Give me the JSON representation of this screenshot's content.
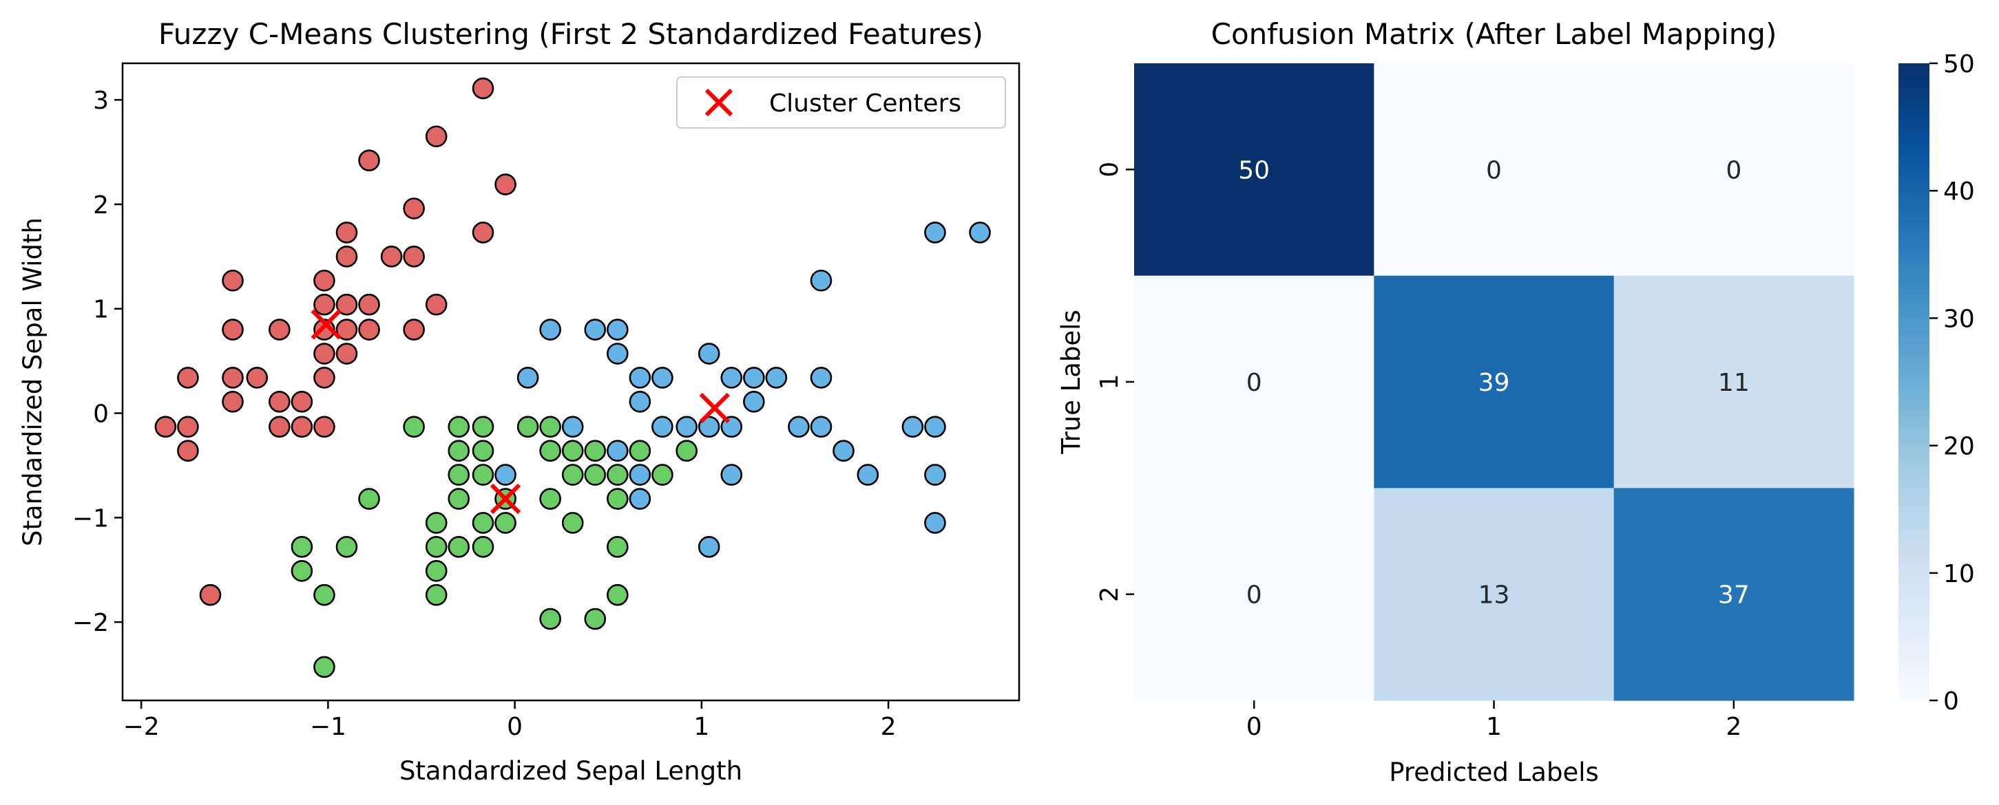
{
  "chart_data": [
    {
      "type": "scatter",
      "title": "Fuzzy C-Means Clustering (First 2 Standardized Features)",
      "xlabel": "Standardized Sepal Length",
      "ylabel": "Standardized Sepal Width",
      "xlim": [
        -2.1,
        2.7
      ],
      "ylim": [
        -2.75,
        3.35
      ],
      "xticks": [
        -2,
        -1,
        0,
        1,
        2
      ],
      "yticks": [
        -2,
        -1,
        0,
        1,
        2,
        3
      ],
      "legend": {
        "placement": "top-right",
        "entries": [
          "Cluster Centers"
        ]
      },
      "grid": false,
      "colors": {
        "red": "#e06666",
        "green": "#6acc64",
        "blue": "#66b3e6",
        "center": "#ff0000",
        "edge": "#000000"
      },
      "series": [
        {
          "color": "red",
          "points": [
            [
              -1.87,
              -0.13
            ],
            [
              -1.75,
              -0.13
            ],
            [
              -1.75,
              -0.36
            ],
            [
              -1.75,
              0.34
            ],
            [
              -1.63,
              -1.74
            ],
            [
              -1.51,
              0.11
            ],
            [
              -1.51,
              0.34
            ],
            [
              -1.51,
              0.8
            ],
            [
              -1.51,
              1.27
            ],
            [
              -1.38,
              0.34
            ],
            [
              -1.26,
              -0.13
            ],
            [
              -1.26,
              0.11
            ],
            [
              -1.26,
              0.8
            ],
            [
              -1.14,
              -0.13
            ],
            [
              -1.14,
              0.11
            ],
            [
              -1.02,
              -0.13
            ],
            [
              -1.02,
              0.34
            ],
            [
              -1.02,
              0.57
            ],
            [
              -1.02,
              0.8
            ],
            [
              -1.02,
              1.04
            ],
            [
              -1.02,
              1.27
            ],
            [
              -0.9,
              0.57
            ],
            [
              -0.9,
              0.8
            ],
            [
              -0.9,
              1.04
            ],
            [
              -0.9,
              1.5
            ],
            [
              -0.9,
              1.73
            ],
            [
              -0.78,
              0.8
            ],
            [
              -0.78,
              1.04
            ],
            [
              -0.78,
              2.42
            ],
            [
              -0.66,
              1.5
            ],
            [
              -0.54,
              0.8
            ],
            [
              -0.54,
              1.5
            ],
            [
              -0.54,
              1.96
            ],
            [
              -0.42,
              1.04
            ],
            [
              -0.42,
              2.65
            ],
            [
              -0.17,
              1.73
            ],
            [
              -0.17,
              3.11
            ],
            [
              -0.05,
              2.19
            ]
          ]
        },
        {
          "color": "green",
          "points": [
            [
              -1.14,
              -1.28
            ],
            [
              -1.14,
              -1.51
            ],
            [
              -1.02,
              -1.74
            ],
            [
              -1.02,
              -2.43
            ],
            [
              -0.9,
              -1.28
            ],
            [
              -0.78,
              -0.82
            ],
            [
              -0.54,
              -0.13
            ],
            [
              -0.42,
              -1.05
            ],
            [
              -0.42,
              -1.28
            ],
            [
              -0.42,
              -1.51
            ],
            [
              -0.42,
              -1.74
            ],
            [
              -0.3,
              -0.13
            ],
            [
              -0.3,
              -0.36
            ],
            [
              -0.3,
              -0.59
            ],
            [
              -0.3,
              -0.82
            ],
            [
              -0.3,
              -1.28
            ],
            [
              -0.17,
              -0.13
            ],
            [
              -0.17,
              -0.36
            ],
            [
              -0.17,
              -0.59
            ],
            [
              -0.17,
              -1.05
            ],
            [
              -0.17,
              -1.28
            ],
            [
              -0.05,
              -0.82
            ],
            [
              -0.05,
              -1.05
            ],
            [
              0.07,
              -0.13
            ],
            [
              0.19,
              -0.13
            ],
            [
              0.19,
              -0.36
            ],
            [
              0.19,
              -0.82
            ],
            [
              0.19,
              -1.97
            ],
            [
              0.31,
              -0.36
            ],
            [
              0.31,
              -0.59
            ],
            [
              0.31,
              -1.05
            ],
            [
              0.43,
              -0.36
            ],
            [
              0.43,
              -0.59
            ],
            [
              0.43,
              -1.97
            ],
            [
              0.55,
              -0.59
            ],
            [
              0.55,
              -0.82
            ],
            [
              0.55,
              -1.28
            ],
            [
              0.55,
              -1.74
            ],
            [
              0.67,
              -0.36
            ],
            [
              0.79,
              -0.59
            ],
            [
              0.92,
              -0.36
            ]
          ]
        },
        {
          "color": "blue",
          "points": [
            [
              -0.05,
              -0.59
            ],
            [
              0.07,
              0.34
            ],
            [
              0.19,
              0.8
            ],
            [
              0.31,
              -0.13
            ],
            [
              0.43,
              0.8
            ],
            [
              0.55,
              -0.36
            ],
            [
              0.55,
              0.57
            ],
            [
              0.55,
              0.8
            ],
            [
              0.67,
              -0.59
            ],
            [
              0.67,
              -0.82
            ],
            [
              0.67,
              0.11
            ],
            [
              0.67,
              0.34
            ],
            [
              0.79,
              -0.13
            ],
            [
              0.79,
              0.34
            ],
            [
              0.92,
              -0.13
            ],
            [
              1.04,
              -0.13
            ],
            [
              1.04,
              0.57
            ],
            [
              1.04,
              -1.28
            ],
            [
              1.16,
              -0.13
            ],
            [
              1.16,
              -0.59
            ],
            [
              1.16,
              0.34
            ],
            [
              1.28,
              0.11
            ],
            [
              1.28,
              0.34
            ],
            [
              1.4,
              0.34
            ],
            [
              1.52,
              -0.13
            ],
            [
              1.64,
              -0.13
            ],
            [
              1.64,
              0.34
            ],
            [
              1.64,
              1.27
            ],
            [
              1.76,
              -0.36
            ],
            [
              1.89,
              -0.59
            ],
            [
              2.13,
              -0.13
            ],
            [
              2.25,
              -0.13
            ],
            [
              2.25,
              -0.59
            ],
            [
              2.25,
              -1.05
            ],
            [
              2.25,
              1.73
            ],
            [
              2.49,
              1.73
            ]
          ]
        }
      ],
      "centers": [
        [
          -1.01,
          0.85
        ],
        [
          -0.05,
          -0.82
        ],
        [
          1.07,
          0.05
        ]
      ]
    },
    {
      "type": "heatmap",
      "title": "Confusion Matrix (After Label Mapping)",
      "xlabel": "Predicted Labels",
      "ylabel": "True Labels",
      "x_categories": [
        "0",
        "1",
        "2"
      ],
      "y_categories": [
        "0",
        "1",
        "2"
      ],
      "values": [
        [
          50,
          0,
          0
        ],
        [
          0,
          39,
          11
        ],
        [
          0,
          13,
          37
        ]
      ],
      "colormap": "Blues",
      "colorbar": {
        "min": 0,
        "max": 50,
        "ticks": [
          0,
          10,
          20,
          30,
          40,
          50
        ]
      }
    }
  ]
}
